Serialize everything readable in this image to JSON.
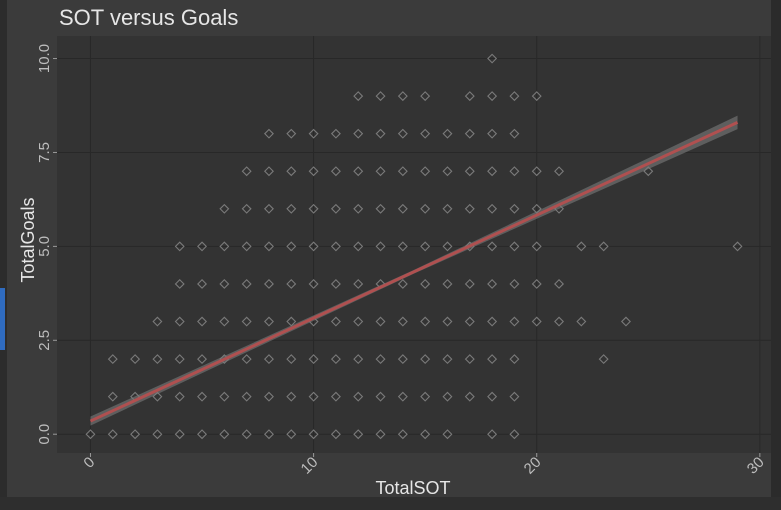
{
  "chart_data": {
    "type": "scatter",
    "title": "SOT versus Goals",
    "xlabel": "TotalSOT",
    "ylabel": "TotalGoals",
    "xlim": [
      -1.5,
      30.5
    ],
    "ylim": [
      -0.5,
      10.6
    ],
    "x_ticks": [
      0,
      10,
      20,
      30
    ],
    "x_tick_labels": [
      "0",
      "10",
      "20",
      "30"
    ],
    "y_ticks": [
      0,
      2.5,
      5,
      7.5,
      10
    ],
    "y_tick_labels": [
      "0.0",
      "2.5",
      "5.0",
      "7.5",
      "10.0"
    ],
    "grid": true,
    "points": [
      [
        0,
        0
      ],
      [
        1,
        0
      ],
      [
        2,
        0
      ],
      [
        3,
        0
      ],
      [
        4,
        0
      ],
      [
        5,
        0
      ],
      [
        6,
        0
      ],
      [
        7,
        0
      ],
      [
        8,
        0
      ],
      [
        9,
        0
      ],
      [
        10,
        0
      ],
      [
        11,
        0
      ],
      [
        12,
        0
      ],
      [
        13,
        0
      ],
      [
        14,
        0
      ],
      [
        15,
        0
      ],
      [
        16,
        0
      ],
      [
        18,
        0
      ],
      [
        19,
        0
      ],
      [
        1,
        1
      ],
      [
        2,
        1
      ],
      [
        3,
        1
      ],
      [
        4,
        1
      ],
      [
        5,
        1
      ],
      [
        6,
        1
      ],
      [
        7,
        1
      ],
      [
        8,
        1
      ],
      [
        9,
        1
      ],
      [
        10,
        1
      ],
      [
        11,
        1
      ],
      [
        12,
        1
      ],
      [
        13,
        1
      ],
      [
        14,
        1
      ],
      [
        15,
        1
      ],
      [
        16,
        1
      ],
      [
        17,
        1
      ],
      [
        18,
        1
      ],
      [
        19,
        1
      ],
      [
        1,
        2
      ],
      [
        2,
        2
      ],
      [
        3,
        2
      ],
      [
        4,
        2
      ],
      [
        5,
        2
      ],
      [
        6,
        2
      ],
      [
        7,
        2
      ],
      [
        8,
        2
      ],
      [
        9,
        2
      ],
      [
        10,
        2
      ],
      [
        11,
        2
      ],
      [
        12,
        2
      ],
      [
        13,
        2
      ],
      [
        14,
        2
      ],
      [
        15,
        2
      ],
      [
        16,
        2
      ],
      [
        17,
        2
      ],
      [
        18,
        2
      ],
      [
        19,
        2
      ],
      [
        23,
        2
      ],
      [
        3,
        3
      ],
      [
        4,
        3
      ],
      [
        5,
        3
      ],
      [
        6,
        3
      ],
      [
        7,
        3
      ],
      [
        8,
        3
      ],
      [
        9,
        3
      ],
      [
        10,
        3
      ],
      [
        11,
        3
      ],
      [
        12,
        3
      ],
      [
        13,
        3
      ],
      [
        14,
        3
      ],
      [
        15,
        3
      ],
      [
        16,
        3
      ],
      [
        17,
        3
      ],
      [
        18,
        3
      ],
      [
        19,
        3
      ],
      [
        20,
        3
      ],
      [
        21,
        3
      ],
      [
        22,
        3
      ],
      [
        24,
        3
      ],
      [
        4,
        4
      ],
      [
        5,
        4
      ],
      [
        6,
        4
      ],
      [
        7,
        4
      ],
      [
        8,
        4
      ],
      [
        9,
        4
      ],
      [
        10,
        4
      ],
      [
        11,
        4
      ],
      [
        12,
        4
      ],
      [
        13,
        4
      ],
      [
        14,
        4
      ],
      [
        15,
        4
      ],
      [
        16,
        4
      ],
      [
        17,
        4
      ],
      [
        18,
        4
      ],
      [
        19,
        4
      ],
      [
        20,
        4
      ],
      [
        21,
        4
      ],
      [
        4,
        5
      ],
      [
        5,
        5
      ],
      [
        6,
        5
      ],
      [
        7,
        5
      ],
      [
        8,
        5
      ],
      [
        9,
        5
      ],
      [
        10,
        5
      ],
      [
        11,
        5
      ],
      [
        12,
        5
      ],
      [
        13,
        5
      ],
      [
        14,
        5
      ],
      [
        15,
        5
      ],
      [
        16,
        5
      ],
      [
        17,
        5
      ],
      [
        18,
        5
      ],
      [
        19,
        5
      ],
      [
        20,
        5
      ],
      [
        22,
        5
      ],
      [
        23,
        5
      ],
      [
        29,
        5
      ],
      [
        6,
        6
      ],
      [
        7,
        6
      ],
      [
        8,
        6
      ],
      [
        9,
        6
      ],
      [
        10,
        6
      ],
      [
        11,
        6
      ],
      [
        12,
        6
      ],
      [
        13,
        6
      ],
      [
        14,
        6
      ],
      [
        15,
        6
      ],
      [
        16,
        6
      ],
      [
        17,
        6
      ],
      [
        18,
        6
      ],
      [
        19,
        6
      ],
      [
        20,
        6
      ],
      [
        21,
        6
      ],
      [
        7,
        7
      ],
      [
        8,
        7
      ],
      [
        9,
        7
      ],
      [
        10,
        7
      ],
      [
        11,
        7
      ],
      [
        12,
        7
      ],
      [
        13,
        7
      ],
      [
        14,
        7
      ],
      [
        15,
        7
      ],
      [
        16,
        7
      ],
      [
        17,
        7
      ],
      [
        18,
        7
      ],
      [
        19,
        7
      ],
      [
        20,
        7
      ],
      [
        21,
        7
      ],
      [
        25,
        7
      ],
      [
        8,
        8
      ],
      [
        9,
        8
      ],
      [
        10,
        8
      ],
      [
        11,
        8
      ],
      [
        12,
        8
      ],
      [
        13,
        8
      ],
      [
        14,
        8
      ],
      [
        15,
        8
      ],
      [
        16,
        8
      ],
      [
        17,
        8
      ],
      [
        18,
        8
      ],
      [
        19,
        8
      ],
      [
        12,
        9
      ],
      [
        13,
        9
      ],
      [
        14,
        9
      ],
      [
        15,
        9
      ],
      [
        17,
        9
      ],
      [
        18,
        9
      ],
      [
        19,
        9
      ],
      [
        20,
        9
      ],
      [
        18,
        10
      ]
    ],
    "trend_line": {
      "x": [
        0,
        29
      ],
      "y": [
        0.35,
        8.3
      ],
      "color": "#b05050",
      "band_color": "#707070"
    },
    "colors": {
      "panel": "#333333",
      "grid": "#282828",
      "point": "#7a7a7a",
      "background": "#3b3b3b"
    }
  }
}
